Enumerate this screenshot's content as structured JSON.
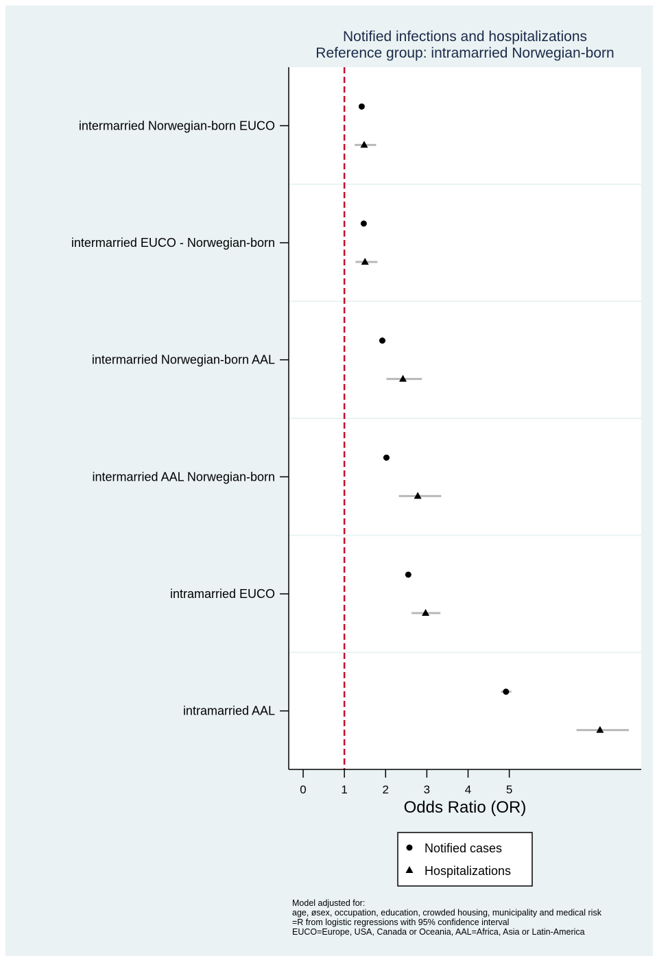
{
  "chart_data": {
    "type": "scatter",
    "title": "Notified infections and hospitalizations",
    "subtitle": "Reference group: intramarried Norwegian-born",
    "xlabel": "Odds Ratio (OR)",
    "x_ticks": [
      0,
      1,
      2,
      3,
      4,
      5
    ],
    "xlim": [
      -0.35,
      8.2
    ],
    "reference_line": 1,
    "reference_line_color": "#c0102a",
    "categories": [
      "intermarried Norwegian-born EUCO",
      "intermarried EUCO - Norwegian-born",
      "intermarried Norwegian-born AAL",
      "intermarried AAL Norwegian-born",
      "intramarried EUCO",
      "intramarried AAL"
    ],
    "series": [
      {
        "name": "Notified cases",
        "marker": "circle",
        "values": [
          1.42,
          1.47,
          1.92,
          2.02,
          2.55,
          4.92
        ],
        "ci_low": [
          1.38,
          1.43,
          1.84,
          1.94,
          2.49,
          4.8
        ],
        "ci_high": [
          1.46,
          1.51,
          2.0,
          2.1,
          2.61,
          5.05
        ]
      },
      {
        "name": "Hospitalizations",
        "marker": "triangle",
        "values": [
          1.48,
          1.5,
          2.42,
          2.78,
          2.97,
          7.2
        ],
        "ci_low": [
          1.25,
          1.27,
          2.02,
          2.32,
          2.63,
          6.63
        ],
        "ci_high": [
          1.77,
          1.8,
          2.88,
          3.35,
          3.33,
          7.9
        ]
      }
    ],
    "legend_position": "bottom",
    "colors": {
      "marker": "#000000",
      "ci": "#b8b8b8",
      "background": "#eaf2f3",
      "plot": "#ffffff"
    }
  },
  "footnote": [
    "Model adjusted for:",
    "age, øsex, occupation, education, crowded housing, municipality and medical risk",
    "=R from logistic regressions with 95% confidence interval",
    "EUCO=Europe, USA, Canada or Oceania, AAL=Africa, Asia or Latin-America"
  ]
}
